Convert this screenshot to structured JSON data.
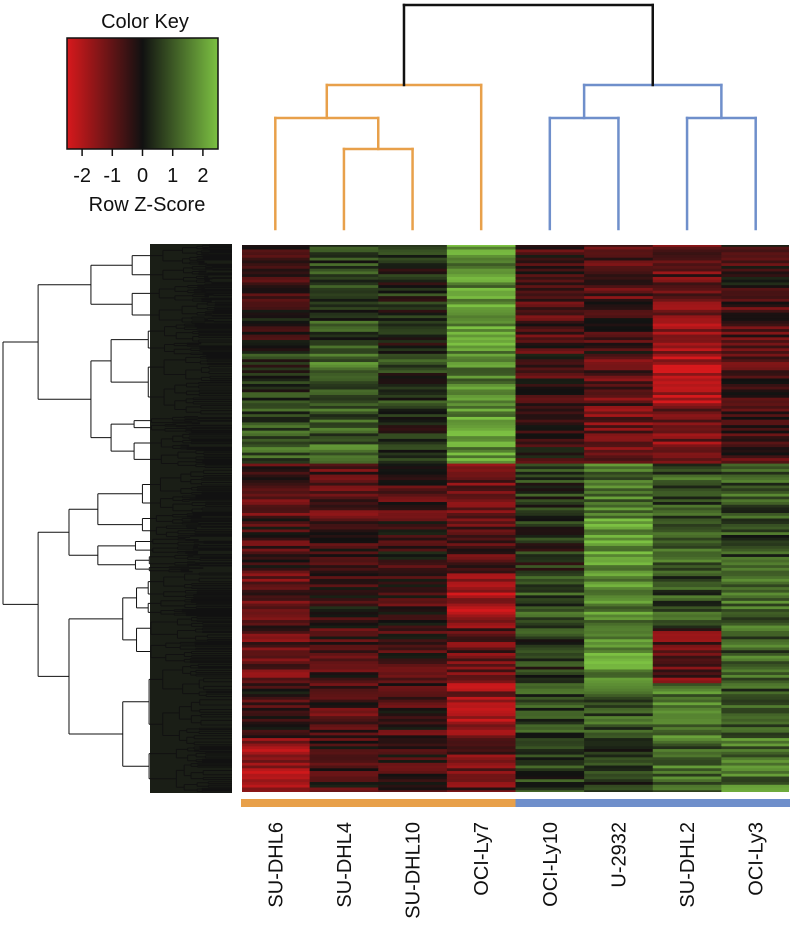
{
  "chart_data": {
    "type": "heatmap",
    "title": "",
    "xlabel": "",
    "ylabel": "",
    "columns": [
      "SU-DHL6",
      "SU-DHL4",
      "SU-DHL10",
      "OCI-Ly7",
      "OCI-Ly10",
      "U-2932",
      "SU-DHL2",
      "OCI-Ly3"
    ],
    "column_groups": [
      {
        "members": [
          "SU-DHL6",
          "SU-DHL4",
          "SU-DHL10",
          "OCI-Ly7"
        ],
        "color": "#E8A04A"
      },
      {
        "members": [
          "OCI-Ly10",
          "U-2932",
          "SU-DHL2",
          "OCI-Ly3"
        ],
        "color": "#6F8FCB"
      }
    ],
    "row_blocks": [
      [
        -0.4,
        0.6,
        0.3,
        1.8,
        -0.6,
        -0.8,
        -1.0,
        -0.4
      ],
      [
        -0.3,
        0.7,
        0.2,
        1.9,
        -0.7,
        -0.6,
        -1.5,
        -0.8
      ],
      [
        0.4,
        1.2,
        0.5,
        1.6,
        -0.5,
        -0.9,
        -2.0,
        -0.7
      ],
      [
        0.9,
        1.1,
        0.2,
        1.9,
        -0.4,
        -1.1,
        -1.3,
        -0.6
      ],
      [
        -0.8,
        -0.9,
        -0.6,
        -1.0,
        0.6,
        1.4,
        0.9,
        1.0
      ],
      [
        -0.6,
        -0.5,
        -0.4,
        -0.7,
        0.3,
        2.0,
        1.0,
        0.8
      ],
      [
        -0.9,
        -0.3,
        -0.5,
        -1.8,
        0.8,
        1.6,
        0.9,
        1.2
      ],
      [
        -1.0,
        -0.6,
        -0.5,
        -0.9,
        0.5,
        1.9,
        -1.0,
        1.1
      ],
      [
        -0.5,
        -0.7,
        -0.6,
        -1.6,
        0.7,
        1.0,
        1.3,
        0.9
      ],
      [
        -1.8,
        -0.5,
        -0.6,
        -1.0,
        0.6,
        0.5,
        1.2,
        1.4
      ]
    ],
    "color_key": {
      "title": "Color Key",
      "label": "Row Z-Score",
      "ticks": [
        "-2",
        "-1",
        "0",
        "1",
        "2"
      ],
      "range": [
        -2.5,
        2.5
      ],
      "low_color": "#D7191C",
      "mid_color": "#111111",
      "high_color": "#7CC142"
    },
    "legend": "top-left"
  }
}
